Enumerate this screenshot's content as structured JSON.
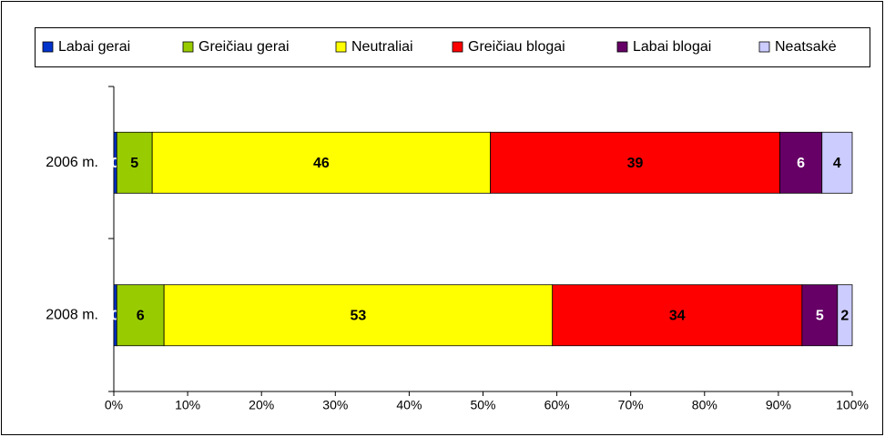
{
  "chart_data": {
    "type": "stacked_bar_horizontal",
    "categories": [
      "2006 m.",
      "2008 m."
    ],
    "series": [
      {
        "name": "Labai gerai",
        "color": "#0033cc",
        "values": [
          0.4,
          0.4
        ],
        "value_labels": [
          "0",
          "0"
        ]
      },
      {
        "name": "Greičiau gerai",
        "color": "#99cc00",
        "values": [
          4.8,
          6.4
        ],
        "value_labels": [
          "5",
          "6"
        ]
      },
      {
        "name": "Neutraliai",
        "color": "#ffff00",
        "values": [
          45.8,
          52.6
        ],
        "value_labels": [
          "46",
          "53"
        ]
      },
      {
        "name": "Greičiau blogai",
        "color": "#ff0000",
        "values": [
          39.2,
          33.8
        ],
        "value_labels": [
          "39",
          "34"
        ]
      },
      {
        "name": "Labai blogai",
        "color": "#660066",
        "values": [
          5.7,
          4.8
        ],
        "value_labels": [
          "6",
          "5"
        ]
      },
      {
        "name": "Neatsakė",
        "color": "#ccccff",
        "values": [
          4.1,
          2.0
        ],
        "value_labels": [
          "4",
          "2"
        ]
      }
    ],
    "xlim": [
      0,
      100
    ],
    "xticks": [
      {
        "value": 0,
        "label": "0%"
      },
      {
        "value": 10,
        "label": "10%"
      },
      {
        "value": 20,
        "label": "20%"
      },
      {
        "value": 30,
        "label": "30%"
      },
      {
        "value": 40,
        "label": "40%"
      },
      {
        "value": 50,
        "label": "50%"
      },
      {
        "value": 60,
        "label": "60%"
      },
      {
        "value": 70,
        "label": "70%"
      },
      {
        "value": 80,
        "label": "80%"
      },
      {
        "value": 90,
        "label": "90%"
      },
      {
        "value": 100,
        "label": "100%"
      }
    ],
    "legend": "top"
  }
}
